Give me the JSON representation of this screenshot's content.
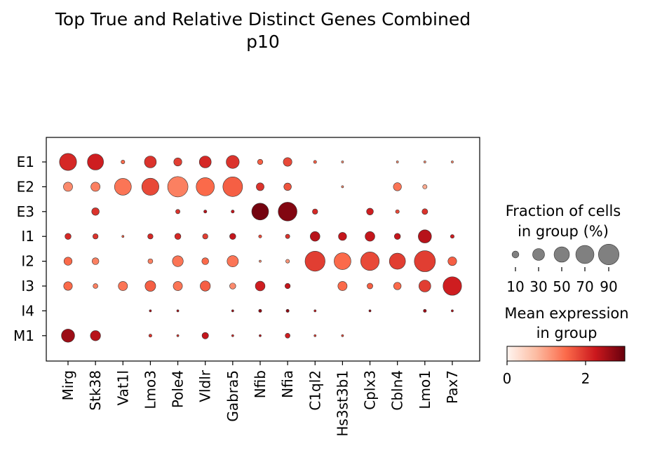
{
  "chart_data": {
    "type": "dotplot",
    "title": "Top True and Relative Distinct Genes Combined",
    "subtitle": "p10",
    "genes": [
      "Mirg",
      "Stk38",
      "Vat1l",
      "Lmo3",
      "Pole4",
      "Vldlr",
      "Gabra5",
      "Nfib",
      "Nfia",
      "C1ql2",
      "Hs3st3b1",
      "Cplx3",
      "Cbln4",
      "Lmo1",
      "Pax7"
    ],
    "groups": [
      "E1",
      "E2",
      "E3",
      "I1",
      "I2",
      "I3",
      "I4",
      "M1"
    ],
    "fraction": [
      [
        62,
        55,
        3,
        30,
        14,
        30,
        36,
        6,
        16,
        2,
        1,
        0,
        1,
        1,
        1
      ],
      [
        18,
        18,
        60,
        62,
        88,
        70,
        82,
        13,
        12,
        0,
        1,
        0,
        14,
        4,
        0
      ],
      [
        0,
        12,
        0,
        0,
        4,
        2,
        2,
        60,
        75,
        6,
        0,
        10,
        3,
        7,
        0
      ],
      [
        8,
        6,
        1,
        6,
        8,
        6,
        8,
        2,
        4,
        20,
        14,
        20,
        8,
        37,
        3
      ],
      [
        14,
        10,
        0,
        5,
        25,
        10,
        27,
        1,
        3,
        85,
        60,
        73,
        55,
        94,
        16
      ],
      [
        16,
        5,
        18,
        24,
        18,
        22,
        8,
        20,
        6,
        0,
        18,
        7,
        12,
        30,
        73
      ],
      [
        0,
        0,
        0,
        1,
        1,
        0,
        1,
        2,
        2,
        1,
        0,
        1,
        0,
        2,
        1
      ],
      [
        37,
        22,
        0,
        2,
        1,
        9,
        1,
        1,
        5,
        1,
        1,
        0,
        0,
        0,
        0
      ]
    ],
    "expression": [
      [
        2.1,
        2.2,
        1.5,
        2.0,
        1.9,
        2.1,
        2.0,
        1.6,
        1.8,
        1.6,
        1.2,
        0,
        1.2,
        1.2,
        1.3
      ],
      [
        1.2,
        1.3,
        1.4,
        1.8,
        1.3,
        1.5,
        1.6,
        2.0,
        1.7,
        0,
        1.2,
        0,
        1.4,
        0.9,
        0
      ],
      [
        0,
        2.0,
        0,
        0,
        2.0,
        2.4,
        2.3,
        2.9,
        2.8,
        2.1,
        0,
        2.2,
        1.8,
        2.0,
        0
      ],
      [
        2.1,
        2.0,
        1.6,
        2.1,
        2.1,
        1.9,
        2.3,
        1.8,
        2.0,
        2.4,
        2.3,
        2.3,
        2.3,
        2.4,
        2.2
      ],
      [
        1.5,
        1.3,
        0,
        1.3,
        1.4,
        1.5,
        1.4,
        1.2,
        1.1,
        1.9,
        1.5,
        1.8,
        1.9,
        1.9,
        1.6
      ],
      [
        1.5,
        1.3,
        1.4,
        1.6,
        1.4,
        1.6,
        1.2,
        2.2,
        2.3,
        0,
        1.5,
        1.6,
        1.5,
        1.9,
        2.2
      ],
      [
        0,
        2.5,
        1.6,
        2.4,
        2.4,
        1.7,
        2.5,
        2.7,
        2.7,
        2.2,
        0,
        2.6,
        2.0,
        2.6,
        2.4
      ],
      [
        2.6,
        2.4,
        1.6,
        2.0,
        2.0,
        2.3,
        2.1,
        2.4,
        2.2,
        1.9,
        1.8,
        1.2,
        1.5,
        1.5,
        1.5
      ]
    ],
    "size_legend": {
      "title_line1": "Fraction of cells",
      "title_line2": "in group (%)",
      "values": [
        10,
        30,
        50,
        70,
        90
      ],
      "labels": [
        "10",
        "30",
        "50",
        "70",
        "90"
      ]
    },
    "color_legend": {
      "title_line1": "Mean expression",
      "title_line2": "in group",
      "vmin": 0,
      "vmax": 3,
      "ticks": [
        0,
        2
      ],
      "tick_labels": [
        "0",
        "2"
      ],
      "colormap": "Reds"
    },
    "marker_edge_color": "#333333",
    "legend_marker_color": "#808080"
  }
}
